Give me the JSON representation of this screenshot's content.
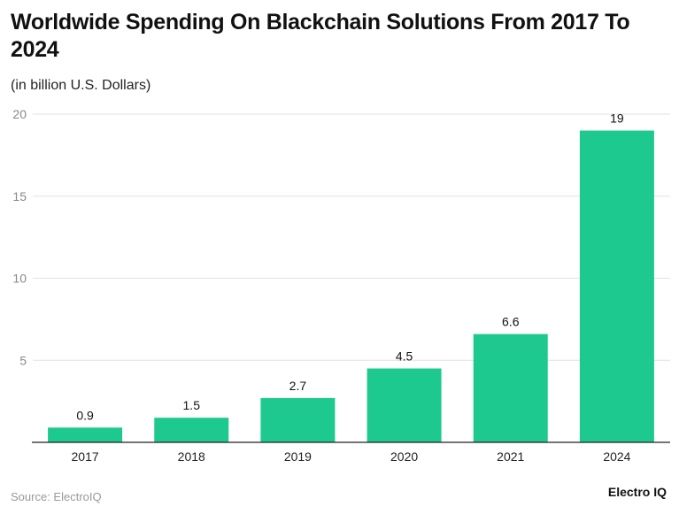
{
  "chart_data": {
    "type": "bar",
    "title": "Worldwide Spending On Blackchain Solutions From 2017 To 2024",
    "subtitle": "(in billion U.S. Dollars)",
    "categories": [
      "2017",
      "2018",
      "2019",
      "2020",
      "2021",
      "2024"
    ],
    "values": [
      0.9,
      1.5,
      2.7,
      4.5,
      6.6,
      19
    ],
    "data_labels": [
      "0.9",
      "1.5",
      "2.7",
      "4.5",
      "6.6",
      "19"
    ],
    "ylim": [
      0,
      20
    ],
    "yticks": [
      5,
      10,
      15,
      20
    ],
    "grid": true,
    "bar_color": "#1ec990",
    "xlabel": "",
    "ylabel": ""
  },
  "source": "Source: ElectroIQ",
  "logo": "Electro IQ"
}
